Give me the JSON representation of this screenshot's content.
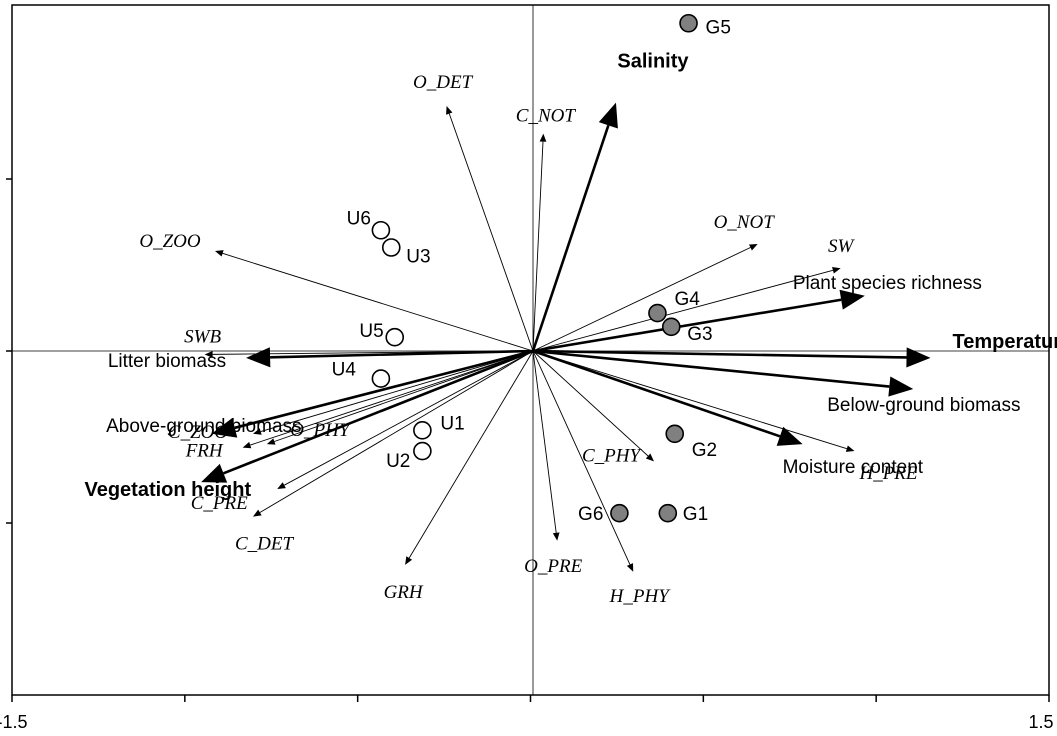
{
  "chart_data": {
    "type": "scatter",
    "subtype": "ordination-biplot",
    "xlim": [
      -1.5,
      1.5
    ],
    "ylim": [
      -1.0,
      1.0
    ],
    "x_tick_labels": [
      "-1.5",
      "1.5"
    ],
    "environmental_vectors": [
      {
        "label": "Salinity",
        "bold": true,
        "x": 0.24,
        "y": 0.72
      },
      {
        "label": "Temperature",
        "bold": true,
        "x": 1.15,
        "y": -0.02
      },
      {
        "label": "Plant species richness",
        "bold": false,
        "x": 0.96,
        "y": 0.16
      },
      {
        "label": "Below-ground biomass",
        "bold": false,
        "x": 1.1,
        "y": -0.11
      },
      {
        "label": "Moisture content",
        "bold": false,
        "x": 0.78,
        "y": -0.27
      },
      {
        "label": "Litter biomass",
        "bold": false,
        "x": -0.83,
        "y": -0.02
      },
      {
        "label": "Above-ground biomass",
        "bold": false,
        "x": -0.93,
        "y": -0.24
      },
      {
        "label": "Vegetation height",
        "bold": true,
        "x": -0.96,
        "y": -0.38
      }
    ],
    "species_vectors": [
      {
        "label": "O_DET",
        "x": -0.25,
        "y": 0.71
      },
      {
        "label": "C_NOT",
        "x": 0.03,
        "y": 0.63
      },
      {
        "label": "O_NOT",
        "x": 0.65,
        "y": 0.31
      },
      {
        "label": "SW",
        "x": 0.89,
        "y": 0.24
      },
      {
        "label": "O_ZOO",
        "x": -0.92,
        "y": 0.29
      },
      {
        "label": "SWB",
        "x": -0.95,
        "y": -0.01
      },
      {
        "label": "C_ZOO",
        "x": -0.81,
        "y": -0.24
      },
      {
        "label": "FRH",
        "x": -0.84,
        "y": -0.28
      },
      {
        "label": "O_PHY",
        "x": -0.77,
        "y": -0.27
      },
      {
        "label": "C_PRE",
        "x": -0.74,
        "y": -0.4
      },
      {
        "label": "C_DET",
        "x": -0.81,
        "y": -0.48
      },
      {
        "label": "GRH",
        "x": -0.37,
        "y": -0.62
      },
      {
        "label": "O_PRE",
        "x": 0.07,
        "y": -0.55
      },
      {
        "label": "C_PHY",
        "x": 0.35,
        "y": -0.32
      },
      {
        "label": "H_PHY",
        "x": 0.29,
        "y": -0.64
      },
      {
        "label": "H_PRE",
        "x": 0.93,
        "y": -0.29
      }
    ],
    "sites": [
      {
        "label": "G1",
        "group": "filled",
        "x": 0.39,
        "y": -0.47
      },
      {
        "label": "G2",
        "group": "filled",
        "x": 0.41,
        "y": -0.24
      },
      {
        "label": "G3",
        "group": "filled",
        "x": 0.4,
        "y": 0.07
      },
      {
        "label": "G4",
        "group": "filled",
        "x": 0.36,
        "y": 0.11
      },
      {
        "label": "G5",
        "group": "filled",
        "x": 0.45,
        "y": 0.95
      },
      {
        "label": "G6",
        "group": "filled",
        "x": 0.25,
        "y": -0.47
      },
      {
        "label": "U1",
        "group": "open",
        "x": -0.32,
        "y": -0.23
      },
      {
        "label": "U2",
        "group": "open",
        "x": -0.32,
        "y": -0.29
      },
      {
        "label": "U3",
        "group": "open",
        "x": -0.41,
        "y": 0.3
      },
      {
        "label": "U4",
        "group": "open",
        "x": -0.44,
        "y": -0.08
      },
      {
        "label": "U5",
        "group": "open",
        "x": -0.4,
        "y": 0.04
      },
      {
        "label": "U6",
        "group": "open",
        "x": -0.44,
        "y": 0.35
      }
    ],
    "colors": {
      "filled": "#808080",
      "open": "#ffffff",
      "stroke": "#000000"
    }
  }
}
